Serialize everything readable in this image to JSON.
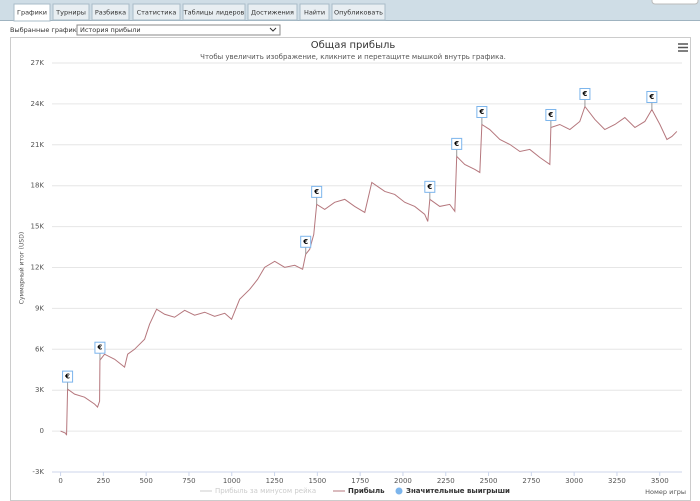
{
  "tabs": [
    "Графики",
    "Турниры",
    "Разбивка",
    "Статистика",
    "Таблицы лидеров",
    "Достижения",
    "Найти",
    "Опубликовать"
  ],
  "selector": {
    "label": "Выбранные графики:",
    "value": "История прибыли"
  },
  "chart_data": {
    "type": "line",
    "title": "Общая прибыль",
    "subtitle": "Чтобы увеличить изображение, кликните и перетащите мышкой внутрь графика.",
    "x_label": "Номер игры",
    "y_label": "Суммарный итог (USD)",
    "xlim": [
      -50,
      3630
    ],
    "xticks": [
      0,
      250,
      500,
      750,
      1000,
      1250,
      1500,
      1750,
      2000,
      2250,
      2500,
      2750,
      3000,
      3250,
      3500
    ],
    "ylim": [
      -3000,
      27000
    ],
    "yticks": [
      {
        "value": -3000,
        "label": "-3K"
      },
      0,
      {
        "value": 3000,
        "label": "3K"
      },
      {
        "value": 6000,
        "label": "6K"
      },
      {
        "value": 9000,
        "label": "9K"
      },
      {
        "value": 12000,
        "label": "12K"
      },
      {
        "value": 15000,
        "label": "15K"
      },
      {
        "value": 18000,
        "label": "18K"
      },
      {
        "value": 21000,
        "label": "21K"
      },
      {
        "value": 24000,
        "label": "24K"
      },
      {
        "value": 27000,
        "label": "27K"
      }
    ],
    "grid": true,
    "hidden_series": [
      {
        "name": "Прибыль за минусом рейка",
        "color": "#cccccc"
      }
    ],
    "series": [
      {
        "name": "Прибыль",
        "color": "#b5777d",
        "x": [
          0,
          29,
          35,
          41,
          82,
          140,
          199,
          216,
          228,
          230,
          257,
          316,
          374,
          392,
          432,
          491,
          520,
          561,
          608,
          666,
          725,
          783,
          842,
          900,
          959,
          999,
          1046,
          1105,
          1151,
          1192,
          1251,
          1309,
          1368,
          1414,
          1432,
          1455,
          1479,
          1496,
          1543,
          1601,
          1660,
          1718,
          1777,
          1818,
          1894,
          1952,
          2011,
          2069,
          2127,
          2145,
          2157,
          2215,
          2273,
          2303,
          2314,
          2361,
          2420,
          2449,
          2461,
          2507,
          2566,
          2624,
          2683,
          2741,
          2800,
          2858,
          2864,
          2916,
          2975,
          3033,
          3063,
          3121,
          3179,
          3238,
          3296,
          3355,
          3413,
          3454,
          3501,
          3542,
          3571,
          3600
        ],
        "values": [
          0,
          -150,
          -300,
          3080,
          2710,
          2490,
          1980,
          1760,
          2200,
          5200,
          5640,
          5270,
          4690,
          5640,
          6000,
          6740,
          7840,
          8940,
          8570,
          8350,
          8860,
          8500,
          8720,
          8420,
          8640,
          8200,
          9670,
          10400,
          11130,
          12010,
          12450,
          12010,
          12160,
          11870,
          12970,
          13330,
          14430,
          16630,
          16260,
          16780,
          17000,
          16480,
          16040,
          18240,
          17580,
          17360,
          16780,
          16480,
          15900,
          15380,
          17000,
          16480,
          16630,
          16120,
          20150,
          19560,
          19190,
          18970,
          22490,
          22120,
          21390,
          21030,
          20510,
          20660,
          20070,
          19560,
          22270,
          22490,
          22120,
          22710,
          23810,
          22860,
          22120,
          22490,
          23000,
          22270,
          22710,
          23590,
          22490,
          21390,
          21610,
          21980
        ]
      }
    ],
    "markers": {
      "name": "Значительные выигрыши",
      "color": "#7cb5ec",
      "label": "€",
      "x": [
        41,
        230,
        1432,
        1496,
        2157,
        2314,
        2461,
        2864,
        3063,
        3454
      ],
      "values": [
        3080,
        5200,
        12970,
        16630,
        17000,
        20150,
        22490,
        22270,
        23810,
        23590
      ]
    }
  }
}
